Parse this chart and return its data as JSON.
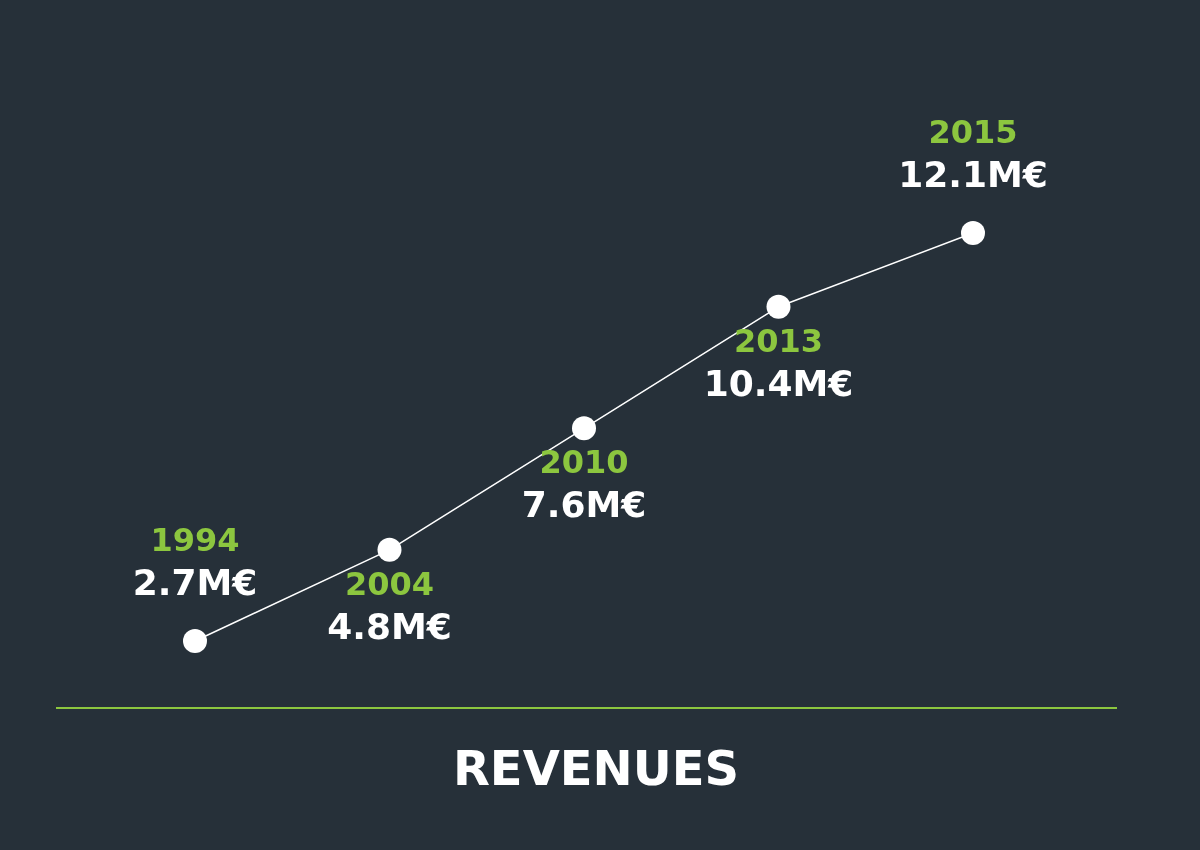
{
  "chart_data": {
    "type": "line",
    "xlabel": "REVENUES",
    "categories": [
      null,
      null,
      null,
      null,
      null
    ],
    "annotations": [
      {
        "text": "1994",
        "y": 2.7
      },
      {
        "text": "2004",
        "y": 4.8
      },
      {
        "text": "2010",
        "y": 7.6
      },
      {
        "text": "2013",
        "y": 10.4
      },
      {
        "text": "2015",
        "y": 12.1
      }
    ],
    "values": [
      2.7,
      4.8,
      7.6,
      10.4,
      12.1
    ],
    "value_labels": [
      "2.7M€",
      "4.8M€",
      "7.6M€",
      "10.4M€",
      "12.1M€"
    ],
    "color": "#ffffff",
    "marker": "circle"
  }
}
